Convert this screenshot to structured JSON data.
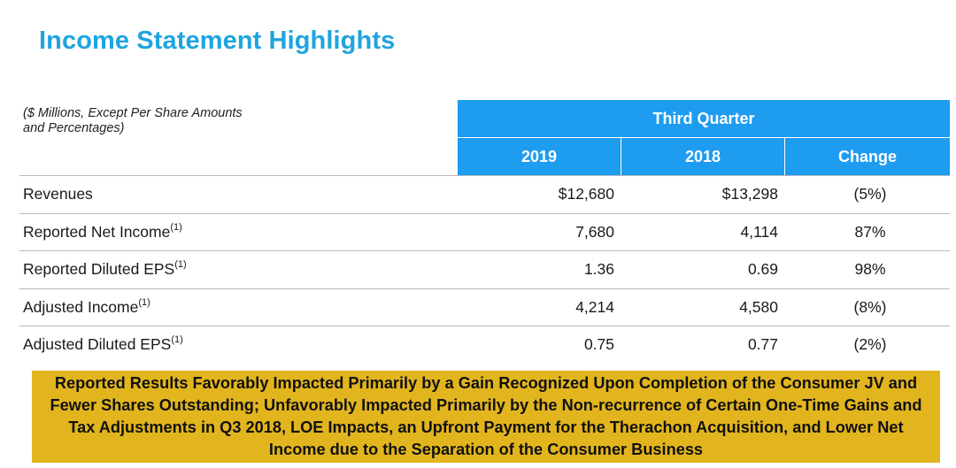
{
  "title": "Income Statement Highlights",
  "units_note": "($ Millions, Except Per Share Amounts and Percentages)",
  "header": {
    "band": "Third Quarter",
    "columns": [
      "2019",
      "2018",
      "Change"
    ]
  },
  "rows": [
    {
      "label": "Revenues",
      "footnote": "",
      "v2019": "$12,680",
      "v2018": "$13,298",
      "change": "(5%)"
    },
    {
      "label": "Reported Net Income",
      "footnote": "(1)",
      "v2019": "7,680",
      "v2018": "4,114",
      "change": "87%"
    },
    {
      "label": "Reported Diluted EPS",
      "footnote": "(1)",
      "v2019": "1.36",
      "v2018": "0.69",
      "change": "98%"
    },
    {
      "label": "Adjusted Income",
      "footnote": "(1)",
      "v2019": "4,214",
      "v2018": "4,580",
      "change": "(8%)"
    },
    {
      "label": "Adjusted Diluted EPS",
      "footnote": "(1)",
      "v2019": "0.75",
      "v2018": "0.77",
      "change": "(2%)"
    }
  ],
  "callout": "Reported Results Favorably Impacted Primarily by a Gain Recognized Upon Completion of the Consumer JV and Fewer Shares Outstanding; Unfavorably Impacted Primarily by the Non-recurrence of Certain One-Time Gains and Tax Adjustments in Q3 2018, LOE Impacts, an Upfront Payment for the Therachon Acquisition, and Lower Net Income due to the Separation of the Consumer Business",
  "colors": {
    "title": "#1fa4e0",
    "header_bg": "#1e9cf0",
    "callout_bg": "#e2b51e"
  }
}
